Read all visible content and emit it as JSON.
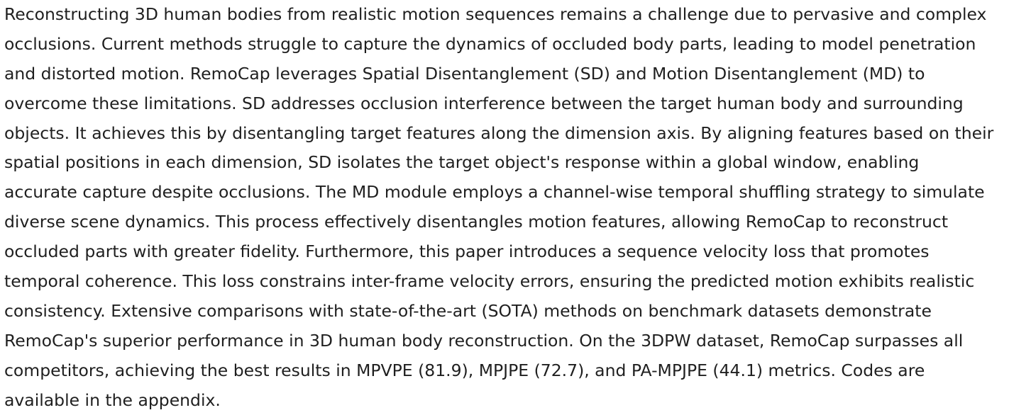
{
  "abstract": {
    "lines": [
      "Reconstructing 3D human bodies from realistic motion sequences remains a challenge due to pervasive and complex",
      "occlusions. Current methods struggle to capture the dynamics of occluded body parts, leading to model penetration",
      "and distorted motion. RemoCap leverages Spatial Disentanglement (SD) and Motion Disentanglement (MD) to",
      "overcome these limitations. SD addresses occlusion interference between the target human body and surrounding",
      "objects. It achieves this by disentangling target features along the dimension axis. By aligning features based on their",
      "spatial positions in each dimension, SD isolates the target object's response within a global window, enabling",
      "accurate capture despite occlusions. The MD module employs a channel-wise temporal shuffling strategy to simulate",
      "diverse scene dynamics. This process effectively disentangles motion features, allowing RemoCap to reconstruct",
      "occluded parts with greater fidelity. Furthermore, this paper introduces a sequence velocity loss that promotes",
      "temporal coherence. This loss constrains inter-frame velocity errors, ensuring the predicted motion exhibits realistic",
      "consistency. Extensive comparisons with state-of-the-art (SOTA) methods on benchmark datasets demonstrate",
      "RemoCap's superior performance in 3D human body reconstruction. On the 3DPW dataset, RemoCap surpasses all",
      "competitors, achieving the best results in MPVPE (81.9), MPJPE (72.7), and PA-MPJPE (44.1) metrics. Codes are",
      "available in the appendix."
    ]
  }
}
